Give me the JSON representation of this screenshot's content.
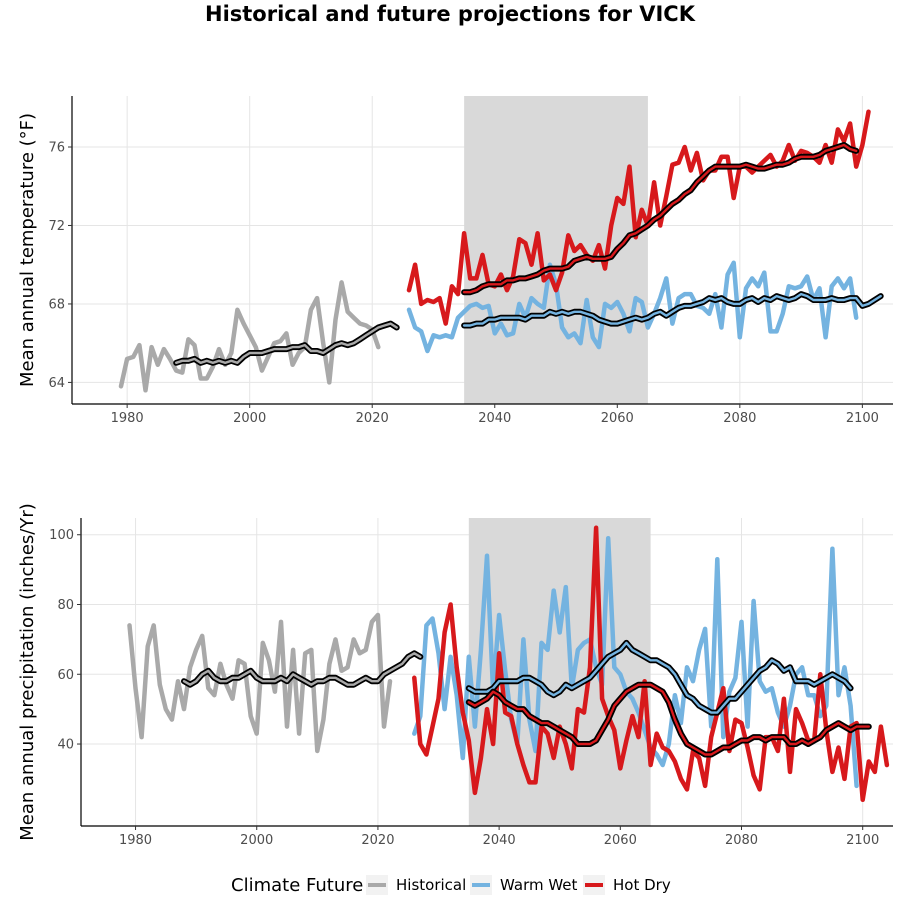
{
  "title": "Historical and future projections for VICK",
  "colors": {
    "Historical": "#a9a9a9",
    "Warm Wet": "#74b3e0",
    "Hot Dry": "#d7191c",
    "smooth": "#000000",
    "shade": "#d9d9d9",
    "grid": "#e5e5e5"
  },
  "legend": {
    "title": "Climate Future",
    "items": [
      "Historical",
      "Warm Wet",
      "Hot Dry"
    ]
  },
  "chart_data": [
    {
      "type": "line",
      "ylabel": "Mean annual temperature (°F)",
      "xlim": [
        1971,
        2105
      ],
      "ylim": [
        62.9,
        78.6
      ],
      "xticks": [
        1980,
        2000,
        2020,
        2040,
        2060,
        2080,
        2100
      ],
      "yticks": [
        64,
        68,
        72,
        76
      ],
      "shaded_period": [
        2035,
        2065
      ],
      "series": [
        {
          "name": "Historical",
          "start": 1979,
          "values": [
            63.8,
            65.2,
            65.3,
            65.9,
            63.6,
            65.8,
            64.9,
            65.7,
            65.2,
            64.6,
            64.5,
            66.2,
            65.9,
            64.2,
            64.2,
            64.8,
            65.7,
            64.9,
            65.5,
            67.7,
            67.0,
            66.4,
            65.8,
            64.6,
            65.3,
            66.0,
            66.1,
            66.5,
            64.9,
            65.5,
            65.8,
            67.7,
            68.3,
            66.0,
            64.0,
            67.2,
            69.1,
            67.6,
            67.3,
            67.0,
            66.9,
            66.7,
            65.8
          ]
        },
        {
          "name": "Warm Wet",
          "start": 2026,
          "values": [
            67.7,
            66.8,
            66.6,
            65.6,
            66.4,
            66.3,
            66.4,
            66.3,
            67.3,
            67.6,
            67.9,
            68.0,
            67.8,
            67.9,
            66.5,
            67.0,
            66.4,
            66.5,
            68.0,
            67.3,
            68.3,
            68.0,
            67.8,
            70.0,
            69.0,
            66.8,
            66.3,
            66.5,
            66.0,
            68.2,
            66.3,
            65.8,
            68.0,
            67.8,
            68.1,
            67.5,
            66.6,
            68.3,
            68.1,
            66.8,
            67.5,
            68.3,
            69.3,
            67.0,
            68.3,
            68.5,
            68.5,
            67.9,
            67.8,
            67.5,
            68.5,
            66.8,
            69.5,
            70.1,
            66.3,
            68.8,
            69.3,
            68.9,
            69.6,
            66.6,
            66.6,
            67.5,
            68.9,
            68.8,
            68.9,
            69.4,
            68.2,
            68.8,
            66.3,
            68.9,
            69.3,
            68.8,
            69.3,
            67.3
          ]
        },
        {
          "name": "Hot Dry",
          "start": 2026,
          "values": [
            68.7,
            70.0,
            68.0,
            68.2,
            68.1,
            68.3,
            67.0,
            68.9,
            68.5,
            71.6,
            69.3,
            69.3,
            70.5,
            69.0,
            68.9,
            69.5,
            68.7,
            69.4,
            71.3,
            71.1,
            70.0,
            71.6,
            69.2,
            69.5,
            68.7,
            69.6,
            71.5,
            70.7,
            71.0,
            70.5,
            70.2,
            71.0,
            69.8,
            72.0,
            73.4,
            73.1,
            75.0,
            71.4,
            72.8,
            72.0,
            74.2,
            72.0,
            73.5,
            75.1,
            75.2,
            76.0,
            74.8,
            75.7,
            74.3,
            74.8,
            74.8,
            75.5,
            75.5,
            73.4,
            75.0,
            75.0,
            74.7,
            75.0,
            75.3,
            75.6,
            75.0,
            75.3,
            76.1,
            75.3,
            75.8,
            75.7,
            75.5,
            75.2,
            76.1,
            75.2,
            76.9,
            76.3,
            77.2,
            75.0,
            76.1,
            77.8
          ]
        },
        {
          "name": "Historical smooth",
          "start": 1988,
          "values": [
            65.0,
            65.1,
            65.1,
            65.2,
            65.0,
            65.1,
            65.0,
            65.1,
            65.0,
            65.1,
            65.0,
            65.3,
            65.5,
            65.5,
            65.5,
            65.6,
            65.7,
            65.7,
            65.7,
            65.8,
            65.8,
            65.9,
            65.6,
            65.6,
            65.5,
            65.7,
            65.9,
            66.0,
            65.9,
            66.0,
            66.2,
            66.4,
            66.6,
            66.8,
            66.9,
            67.0,
            66.8
          ]
        },
        {
          "name": "Warm Wet smooth",
          "start": 2035,
          "values": [
            66.9,
            66.9,
            67.0,
            67.0,
            67.2,
            67.2,
            67.3,
            67.3,
            67.3,
            67.3,
            67.2,
            67.4,
            67.4,
            67.4,
            67.6,
            67.5,
            67.6,
            67.5,
            67.6,
            67.6,
            67.5,
            67.4,
            67.2,
            67.1,
            67.0,
            67.0,
            67.1,
            67.2,
            67.3,
            67.2,
            67.3,
            67.5,
            67.6,
            67.4,
            67.6,
            67.8,
            67.9,
            67.9,
            68.0,
            68.1,
            68.3,
            68.2,
            68.3,
            68.1,
            68.0,
            68.0,
            68.2,
            68.3,
            68.1,
            68.3,
            68.2,
            68.4,
            68.3,
            68.2,
            68.3,
            68.5,
            68.4,
            68.2,
            68.2,
            68.2,
            68.3,
            68.2,
            68.2,
            68.3,
            68.3,
            67.9,
            68.0,
            68.2,
            68.4
          ]
        },
        {
          "name": "Hot Dry smooth",
          "start": 2035,
          "values": [
            68.6,
            68.6,
            68.7,
            68.9,
            69.0,
            69.0,
            69.0,
            69.2,
            69.2,
            69.3,
            69.3,
            69.4,
            69.5,
            69.7,
            69.8,
            69.8,
            69.8,
            69.9,
            70.2,
            70.3,
            70.4,
            70.3,
            70.3,
            70.3,
            70.4,
            70.8,
            71.1,
            71.5,
            71.6,
            71.8,
            72.0,
            72.3,
            72.5,
            72.8,
            73.1,
            73.3,
            73.6,
            73.8,
            74.2,
            74.5,
            74.8,
            75.0,
            75.0,
            75.0,
            75.0,
            75.0,
            75.1,
            75.0,
            74.9,
            74.9,
            75.0,
            75.1,
            75.1,
            75.2,
            75.4,
            75.5,
            75.5,
            75.5,
            75.6,
            75.8,
            75.9,
            76.0,
            76.1,
            75.9,
            75.8
          ]
        }
      ]
    },
    {
      "type": "line",
      "ylabel": "Mean annual precipitation (inches/Yr)",
      "xlim": [
        1971,
        2105
      ],
      "ylim": [
        16.5,
        104.8
      ],
      "xticks": [
        1980,
        2000,
        2020,
        2040,
        2060,
        2080,
        2100
      ],
      "yticks": [
        40,
        60,
        80,
        100
      ],
      "shaded_period": [
        2035,
        2065
      ],
      "series": [
        {
          "name": "Historical",
          "start": 1979,
          "values": [
            74,
            56,
            42,
            68,
            74,
            57,
            50,
            47,
            58,
            50,
            62,
            67,
            71,
            56,
            54,
            63,
            57,
            53,
            64,
            63,
            48,
            43,
            69,
            64,
            55,
            75,
            45,
            67,
            43,
            66,
            67,
            38,
            47,
            63,
            70,
            61,
            62,
            70,
            66,
            67,
            75,
            77,
            45,
            58
          ]
        },
        {
          "name": "Warm Wet",
          "start": 2026,
          "values": [
            43,
            48,
            74,
            76,
            66,
            50,
            65,
            54,
            36,
            65,
            45,
            67,
            94,
            55,
            77,
            61,
            47,
            40,
            70,
            47,
            38,
            69,
            67,
            84,
            72,
            85,
            56,
            67,
            69,
            70,
            62,
            57,
            99,
            62,
            60,
            55,
            53,
            49,
            44,
            39,
            37,
            34,
            40,
            54,
            46,
            62,
            58,
            67,
            73,
            45,
            93,
            42,
            55,
            59,
            75,
            45,
            81,
            58,
            55,
            56,
            49,
            45,
            51,
            60,
            62,
            54,
            54,
            48,
            51,
            96,
            54,
            62,
            51,
            28
          ]
        },
        {
          "name": "Hot Dry",
          "start": 2026,
          "values": [
            59,
            40,
            37,
            45,
            53,
            72,
            80,
            62,
            49,
            41,
            26,
            36,
            50,
            40,
            66,
            49,
            48,
            40,
            34,
            29,
            29,
            45,
            43,
            36,
            45,
            40,
            33,
            50,
            49,
            62,
            102,
            53,
            48,
            44,
            33,
            41,
            48,
            42,
            58,
            34,
            43,
            39,
            38,
            35,
            30,
            27,
            38,
            36,
            28,
            42,
            49,
            56,
            38,
            47,
            46,
            39,
            31,
            27,
            42,
            42,
            38,
            53,
            32,
            50,
            46,
            41,
            41,
            60,
            44,
            32,
            39,
            30,
            45,
            46,
            24,
            35,
            32,
            45,
            34
          ]
        },
        {
          "name": "Historical smooth",
          "start": 1988,
          "values": [
            58,
            57,
            58,
            60,
            61,
            59,
            58,
            58,
            59,
            59,
            60,
            61,
            59,
            58,
            58,
            58,
            59,
            58,
            60,
            59,
            58,
            57,
            58,
            58,
            59,
            59,
            58,
            57,
            57,
            58,
            59,
            58,
            58,
            60,
            61,
            62,
            63,
            65,
            66,
            65
          ]
        },
        {
          "name": "Warm Wet smooth",
          "start": 2035,
          "values": [
            56,
            55,
            55,
            55,
            56,
            58,
            58,
            58,
            58,
            59,
            59,
            58,
            57,
            55,
            54,
            55,
            57,
            56,
            57,
            58,
            59,
            61,
            63,
            65,
            66,
            67,
            69,
            67,
            66,
            65,
            64,
            64,
            63,
            62,
            60,
            57,
            54,
            53,
            51,
            50,
            49,
            49,
            51,
            53,
            53,
            55,
            57,
            59,
            61,
            62,
            64,
            63,
            61,
            62,
            58,
            58,
            58,
            57,
            58,
            59,
            60,
            59,
            58,
            56
          ]
        },
        {
          "name": "Hot Dry smooth",
          "start": 2035,
          "values": [
            52,
            51,
            52,
            53,
            55,
            54,
            52,
            51,
            50,
            50,
            48,
            47,
            46,
            46,
            45,
            44,
            43,
            42,
            40,
            40,
            40,
            41,
            44,
            47,
            51,
            53,
            55,
            56,
            57,
            57,
            57,
            56,
            55,
            52,
            47,
            43,
            40,
            39,
            38,
            37,
            37,
            38,
            39,
            39,
            40,
            41,
            41,
            42,
            42,
            41,
            42,
            42,
            42,
            40,
            40,
            41,
            40,
            41,
            42,
            44,
            45,
            46,
            45,
            44,
            45,
            45,
            45
          ]
        }
      ]
    }
  ]
}
